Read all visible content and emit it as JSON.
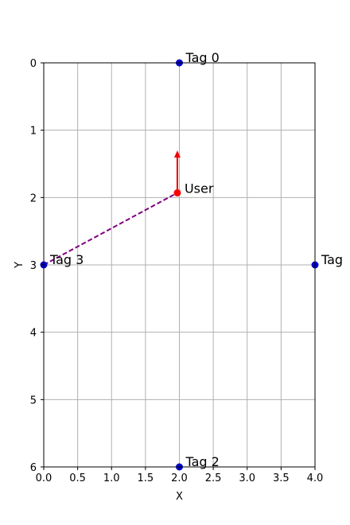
{
  "chart_data": {
    "type": "scatter",
    "xlabel": "X",
    "ylabel": "Y",
    "xlim": [
      0,
      4
    ],
    "ylim": [
      6,
      0
    ],
    "y_inverted": true,
    "grid": true,
    "x_ticks": [
      "0.0",
      "0.5",
      "1.0",
      "1.5",
      "2.0",
      "2.5",
      "3.0",
      "3.5",
      "4.0"
    ],
    "x_tick_values": [
      0,
      0.5,
      1,
      1.5,
      2,
      2.5,
      3,
      3.5,
      4
    ],
    "y_ticks": [
      "0",
      "1",
      "2",
      "3",
      "4",
      "5",
      "6"
    ],
    "y_tick_values": [
      0,
      1,
      2,
      3,
      4,
      5,
      6
    ],
    "tags": [
      {
        "label": "Tag 0",
        "x": 2,
        "y": 0
      },
      {
        "label": "Tag",
        "x": 4,
        "y": 3
      },
      {
        "label": "Tag 2",
        "x": 2,
        "y": 6
      },
      {
        "label": "Tag 3",
        "x": 0,
        "y": 3
      }
    ],
    "user": {
      "label": "User",
      "x": 1.97,
      "y": 1.93
    },
    "heading_arrow": {
      "from": [
        1.97,
        1.93
      ],
      "to": [
        1.97,
        1.3
      ]
    },
    "connection": {
      "from": [
        0,
        3
      ],
      "to": [
        1.97,
        1.93
      ],
      "style": "dashed"
    },
    "colors": {
      "tag": "#0000cc",
      "user": "#ff0000",
      "arrow": "#ee0000",
      "connection": "#800080",
      "grid": "#b0b0b0"
    }
  }
}
